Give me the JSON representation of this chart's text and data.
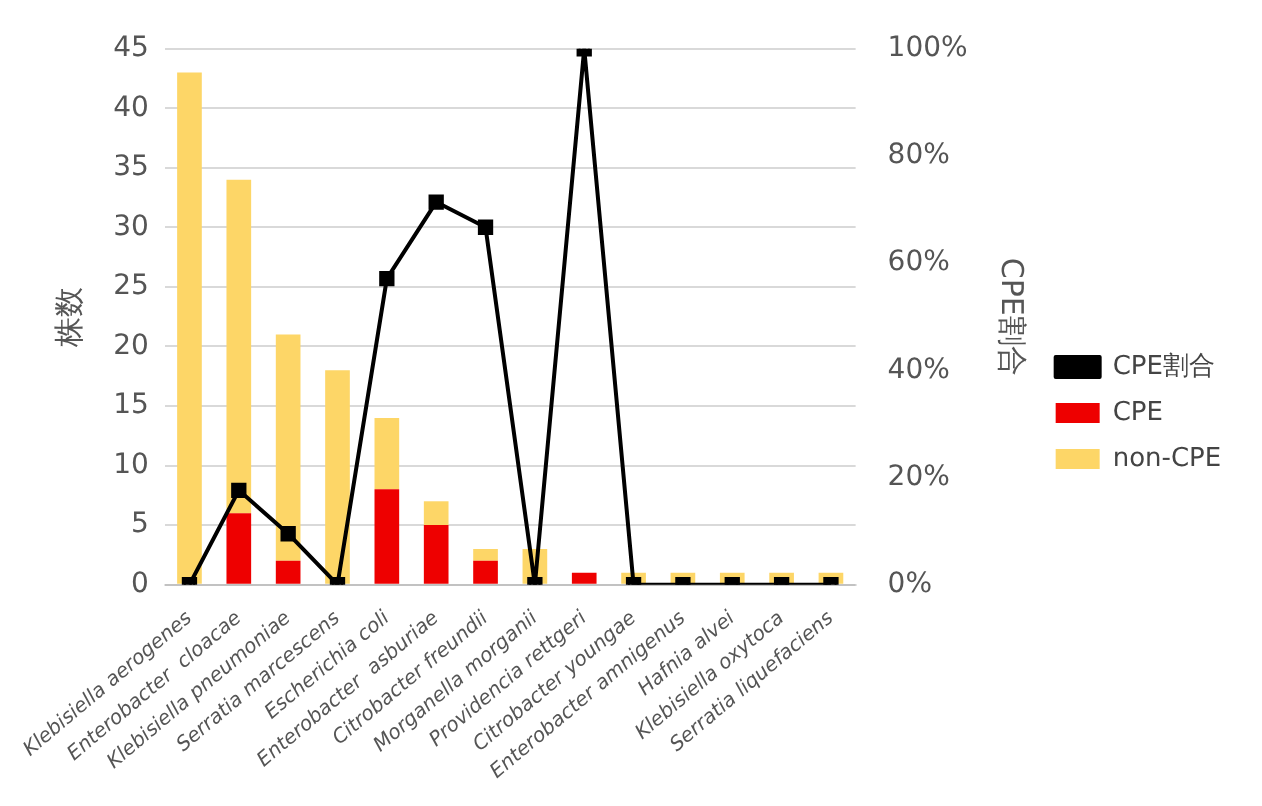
{
  "chart_data": {
    "type": "bar",
    "stacked": true,
    "ylabel": "株数",
    "y2label": "CPE割合",
    "categories": [
      "Klebisiella aerogenes",
      "Enterobacter  cloacae",
      "Klebisiella pneumoniae",
      "Serratia marcescens",
      "Escherichia coli",
      "Enterobacter  asburiae",
      "Citrobacter freundii",
      "Morganella morganii",
      "Providencia rettgeri",
      "Citrobacter youngae",
      "Enterobacter amnigenus",
      "Hafnia alvei",
      "Klebisiella oxytoca",
      "Serratia liquefaciens"
    ],
    "series": [
      {
        "name": "CPE",
        "color": "#ee0000",
        "values": [
          0,
          6,
          2,
          0,
          8,
          5,
          2,
          0,
          1,
          0,
          0,
          0,
          0,
          0
        ]
      },
      {
        "name": "non-CPE",
        "color": "#fdd667",
        "values": [
          43,
          28,
          19,
          18,
          6,
          2,
          1,
          3,
          0,
          1,
          1,
          1,
          1,
          1
        ]
      },
      {
        "name": "CPE割合",
        "type": "line",
        "axis": "y2",
        "color": "#000000",
        "marker": "square",
        "values": [
          0,
          17.6,
          9.5,
          0,
          57.1,
          71.4,
          66.7,
          0,
          100,
          0,
          0,
          0,
          0,
          0
        ]
      }
    ],
    "ylim": [
      0,
      45
    ],
    "yticks": [
      0,
      5,
      10,
      15,
      20,
      25,
      30,
      35,
      40,
      45
    ],
    "y2lim": [
      0,
      100
    ],
    "y2ticks": [
      {
        "value": 0,
        "label": "0%"
      },
      {
        "value": 20,
        "label": "20%"
      },
      {
        "value": 40,
        "label": "40%"
      },
      {
        "value": 60,
        "label": "60%"
      },
      {
        "value": 80,
        "label": "80%"
      },
      {
        "value": 100,
        "label": "100%"
      }
    ],
    "grid": "y",
    "legend": "right"
  }
}
